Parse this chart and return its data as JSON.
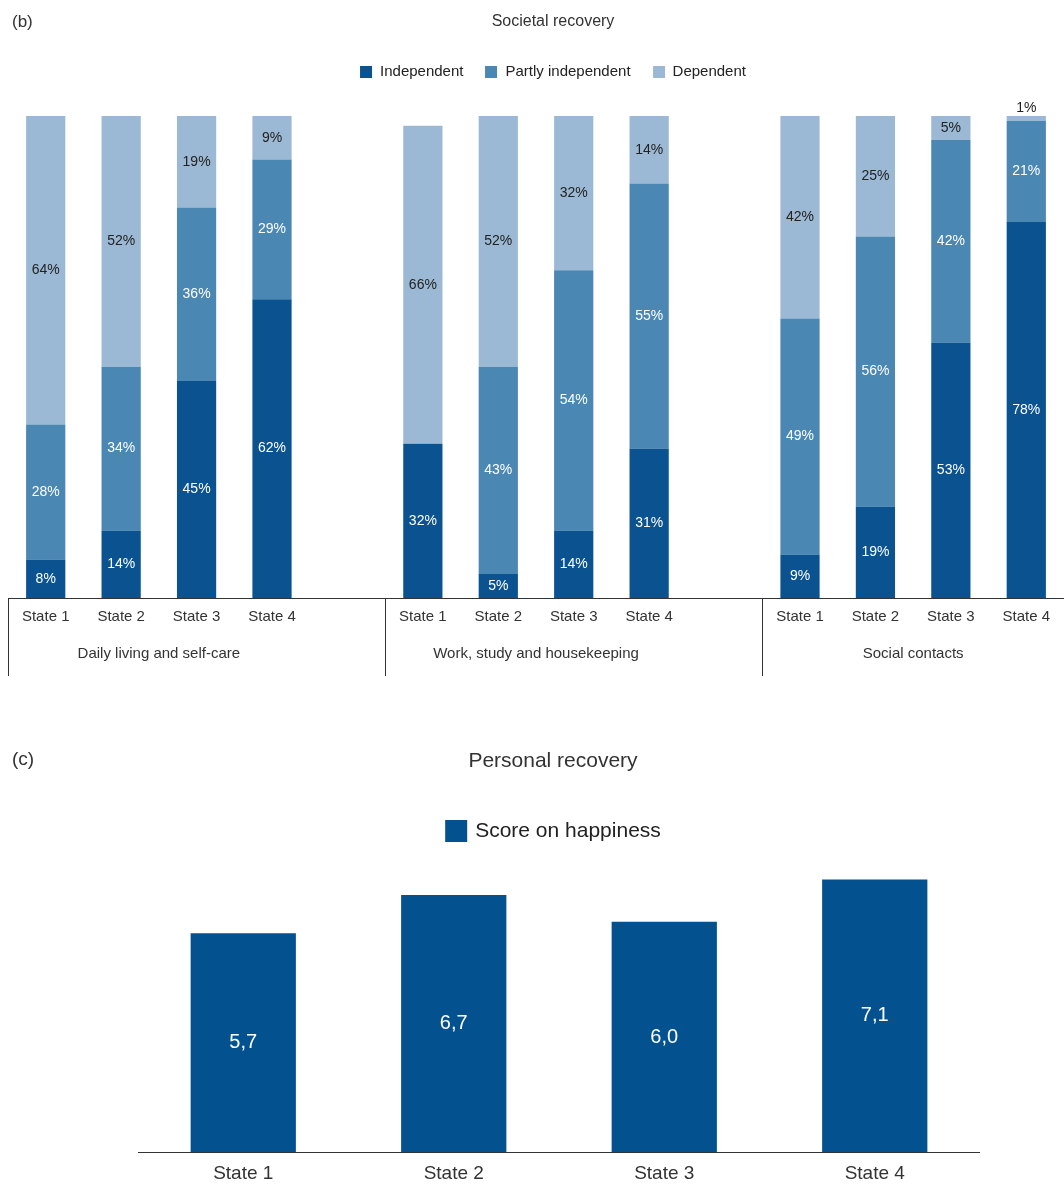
{
  "chart_data": [
    {
      "type": "bar",
      "title": "Societal recovery",
      "annotations": [
        "(b)",
        "Daily living and self-care",
        "Work, study and housekeeping",
        "Social contacts"
      ],
      "categories": [
        "State 1",
        "State 2",
        "State 3",
        "State 4",
        null,
        "State 1",
        "State 2",
        "State 3",
        "State 4",
        null,
        "State 1",
        "State 2",
        "State 3",
        "State 4"
      ],
      "stacked": true,
      "legend": "top",
      "ylim": [
        0,
        100
      ],
      "tick_labels": "x",
      "series": [
        {
          "name": "Independent",
          "color": "#0a5390",
          "values": [
            8,
            14,
            45,
            62,
            null,
            32,
            5,
            14,
            31,
            null,
            9,
            19,
            53,
            78
          ],
          "value_labels": [
            "8%",
            "14%",
            "45%",
            "62%",
            null,
            "32%",
            "5%",
            "14%",
            "31%",
            null,
            "9%",
            "19%",
            "53%",
            "78%"
          ]
        },
        {
          "name": "Partly independent",
          "color": "#4a87b2",
          "values": [
            28,
            34,
            36,
            29,
            null,
            null,
            43,
            54,
            55,
            null,
            49,
            56,
            42,
            21
          ],
          "value_labels": [
            "28%",
            "34%",
            "36%",
            "29%",
            null,
            null,
            "43%",
            "54%",
            "55%",
            null,
            "49%",
            "56%",
            "42%",
            "21%"
          ]
        },
        {
          "name": "Dependent",
          "color": "#9bb9d4",
          "values": [
            64,
            52,
            19,
            9,
            null,
            66,
            52,
            32,
            14,
            null,
            42,
            25,
            5,
            1
          ],
          "value_labels": [
            "64%",
            "52%",
            "19%",
            "9%",
            null,
            "66%",
            "52%",
            "32%",
            "14%",
            null,
            "42%",
            "25%",
            "5%",
            "1%"
          ]
        }
      ]
    },
    {
      "type": "bar",
      "title": "Personal recovery",
      "annotations": [
        "(c)"
      ],
      "categories": [
        "State 1",
        "State 2",
        "State 3",
        "State 4"
      ],
      "legend": "top",
      "tick_labels": "x",
      "series": [
        {
          "name": "Score on happiness",
          "color": "#04518f",
          "values": [
            5.7,
            6.7,
            6.0,
            7.1
          ],
          "value_labels": [
            "5,7",
            "6,7",
            "6,0",
            "7,1"
          ]
        }
      ]
    }
  ]
}
